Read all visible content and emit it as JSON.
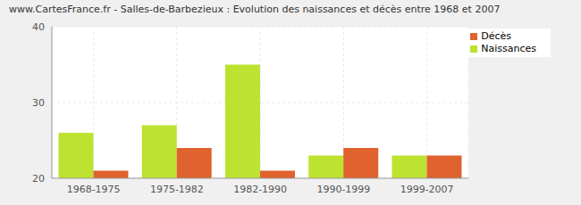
{
  "chart_data": {
    "type": "bar",
    "title": "www.CartesFrance.fr - Salles-de-Barbezieux : Evolution des naissances et décès entre 1968 et 2007",
    "categories": [
      "1968-1975",
      "1975-1982",
      "1982-1990",
      "1990-1999",
      "1999-2007"
    ],
    "series": [
      {
        "name": "Naissances",
        "color": "#bde22f",
        "values": [
          26,
          27,
          35,
          23,
          23
        ]
      },
      {
        "name": "Décès",
        "color": "#e0622f",
        "values": [
          21,
          24,
          21,
          24,
          23
        ]
      }
    ],
    "ylim": [
      20,
      40
    ],
    "yticks": [
      20,
      30,
      40
    ],
    "grid": true,
    "legend": "top-right"
  }
}
